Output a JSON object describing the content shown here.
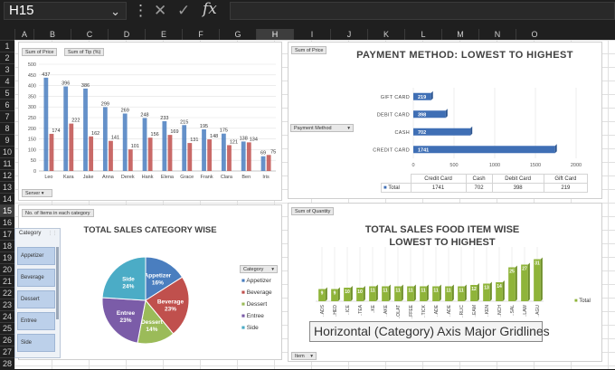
{
  "formula_bar": {
    "cell_name": "H15",
    "formula": ""
  },
  "columns": [
    "A",
    "B",
    "C",
    "D",
    "E",
    "F",
    "G",
    "H",
    "I",
    "J",
    "K",
    "L",
    "M",
    "N",
    "O"
  ],
  "selected_column": "H",
  "rows": [
    "1",
    "2",
    "3",
    "4",
    "5",
    "6",
    "7",
    "8",
    "9",
    "10",
    "11",
    "12",
    "13",
    "14",
    "15",
    "16",
    "17",
    "18",
    "19",
    "20",
    "21",
    "22",
    "23",
    "24",
    "25",
    "26",
    "27",
    "28"
  ],
  "selected_row": "15",
  "tooltip": "Horizontal (Category) Axis Major Gridlines",
  "chart1": {
    "buttons": [
      "Sum of Price",
      "Sum of Tip (%)"
    ],
    "filter_button": "Server",
    "chart_data": {
      "type": "bar",
      "categories": [
        "Leo",
        "Kara",
        "Jake",
        "Anna",
        "Derek",
        "Hank",
        "Elena",
        "Grace",
        "Frank",
        "Clara",
        "Ben",
        "Iris"
      ],
      "series": [
        {
          "values": [
            437,
            396,
            386,
            299,
            269,
            248,
            233,
            215,
            195,
            175,
            138,
            69
          ]
        },
        {
          "values": [
            174,
            222,
            162,
            141,
            101,
            156,
            169,
            131,
            148,
            121,
            134,
            75
          ]
        }
      ],
      "ylim": [
        0,
        500
      ],
      "yticks": [
        0,
        50,
        100,
        150,
        200,
        250,
        300,
        350,
        400,
        450,
        500
      ],
      "colors": [
        "#4a7ebf",
        "#c0504d"
      ]
    }
  },
  "chart2": {
    "button": "Sum of Price",
    "filter_button": "Payment Method",
    "chart_data": {
      "type": "bar",
      "title": "PAYMENT METHOD: LOWEST TO HIGHEST",
      "categories": [
        "GIFT CARD",
        "DEBIT CARD",
        "CASH",
        "CREDIT CARD"
      ],
      "values": [
        219,
        398,
        702,
        1741
      ],
      "xlim": [
        0,
        2000
      ],
      "xticks": [
        0,
        500,
        1000,
        1500,
        2000
      ],
      "color": "#3f6fb5"
    },
    "table": {
      "headers": [
        "Credit Card",
        "Cash",
        "Debit Card",
        "Gift Card"
      ],
      "row_label": "Total",
      "values": [
        "1741",
        "702",
        "398",
        "219"
      ]
    }
  },
  "chart3": {
    "button": "No. of Items in each category",
    "legend_button": "Category",
    "slicer": {
      "title": "Category",
      "items": [
        "Appetizer",
        "Beverage",
        "Dessert",
        "Entree",
        "Side"
      ]
    },
    "chart_data": {
      "type": "pie",
      "title": "TOTAL SALES CATEGORY WISE",
      "categories": [
        "Appetizer",
        "Beverage",
        "Dessert",
        "Entree",
        "Side"
      ],
      "values": [
        16,
        23,
        14,
        23,
        24
      ],
      "labels": [
        "16%",
        "23%",
        "14%",
        "23%",
        "24%"
      ],
      "colors": [
        "#4a7ebf",
        "#c0504d",
        "#9bbb59",
        "#7b5ca8",
        "#4bacc6"
      ]
    }
  },
  "chart4": {
    "button": "Sum of Quantity",
    "filter_button": "Item",
    "legend": "Total",
    "chart_data": {
      "type": "bar",
      "title": "TOTAL SALES FOOD ITEM WISE LOWEST TO HIGHEST",
      "categories": [
        "..ADS",
        "..HED",
        "..ICE",
        "..TEA",
        "..KE",
        "..AKE",
        "..OLAT",
        "..FFEE",
        "..TICK",
        "..ADE",
        "..ADE",
        "..RLIC",
        "..EAM",
        "..KEN",
        "..NCH",
        "..SAL",
        "..LAW",
        "..AGU"
      ],
      "values": [
        9,
        9,
        10,
        10,
        11,
        11,
        11,
        11,
        11,
        11,
        11,
        11,
        12,
        13,
        14,
        25,
        27,
        31
      ],
      "color": "#8fb43a"
    }
  }
}
